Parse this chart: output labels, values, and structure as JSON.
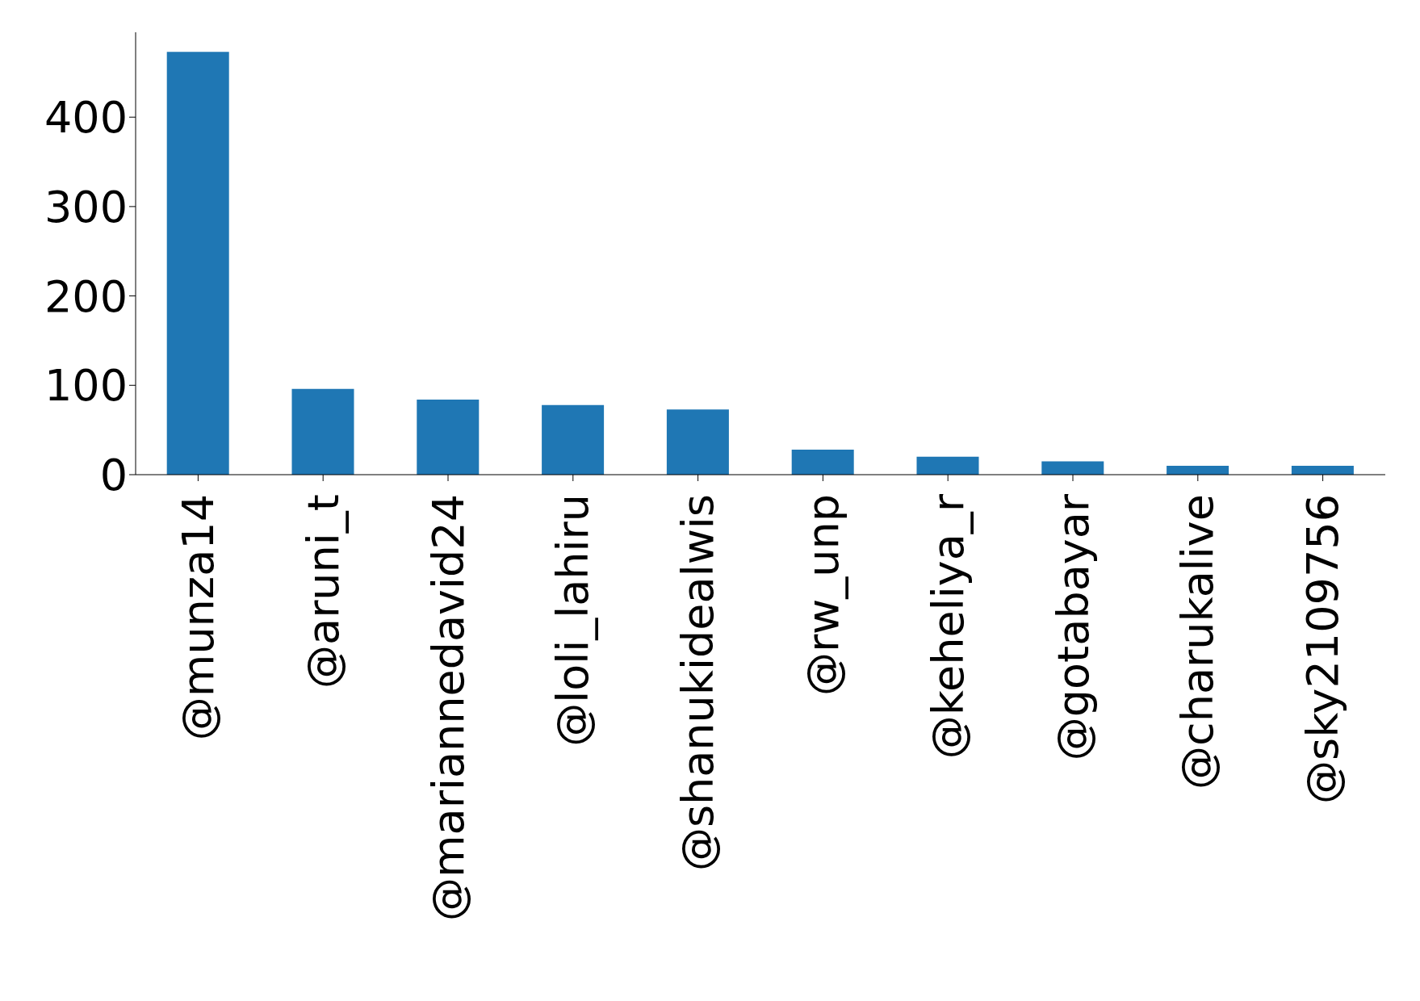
{
  "chart_data": {
    "type": "bar",
    "categories": [
      "@munza14",
      "@aruni_t",
      "@mariannedavid24",
      "@loli_lahiru",
      "@shanukidealwis",
      "@rw_unp",
      "@keheliya_r",
      "@gotabayar",
      "@charukalive",
      "@sky2109756"
    ],
    "values": [
      473,
      96,
      84,
      78,
      73,
      28,
      20,
      15,
      10,
      10
    ],
    "color": "#1f77b4",
    "ylim": [
      0,
      495
    ],
    "yticks": [
      0,
      100,
      200,
      300,
      400
    ]
  }
}
